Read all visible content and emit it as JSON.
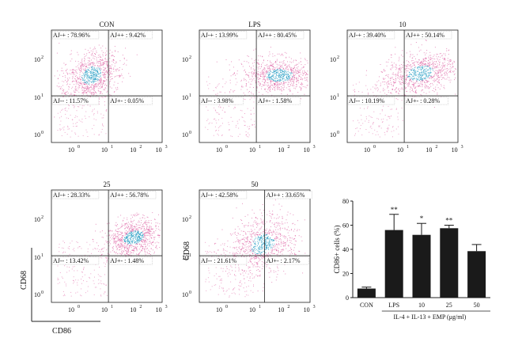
{
  "figure": {
    "panels": [
      {
        "title": "CON",
        "quadrants": {
          "ul": "AJ-+ : 78.96%",
          "ur": "AJ++ : 9.42%",
          "ll": "AJ-- : 11.57%",
          "lr": "AJ+- : 0.05%"
        }
      },
      {
        "title": "LPS",
        "quadrants": {
          "ul": "AJ-+ : 13.99%",
          "ur": "AJ++ : 80.45%",
          "ll": "AJ-- : 3.98%",
          "lr": "AJ+- : 1.58%"
        }
      },
      {
        "title": "10",
        "quadrants": {
          "ul": "AJ-+ : 39.40%",
          "ur": "AJ++ : 50.14%",
          "ll": "AJ-- : 10.19%",
          "lr": "AJ+- : 0.28%"
        }
      },
      {
        "title": "25",
        "quadrants": {
          "ul": "AJ-+ : 28.33%",
          "ur": "AJ++ : 56.78%",
          "ll": "AJ-- : 13.42%",
          "lr": "AJ+- : 1.48%"
        }
      },
      {
        "title": "50",
        "quadrants": {
          "ul": "AJ-+ : 42.58%",
          "ur": "AJ++ : 33.65%",
          "ll": "AJ-- : 21.61%",
          "lr": "AJ+- : 2.17%"
        }
      }
    ],
    "log_tick_labels": [
      "10",
      "10",
      "10",
      "10"
    ],
    "log_tick_exponents": [
      "0",
      "1",
      "2",
      "3"
    ],
    "x_axis_label": "CD86",
    "y_axis_label": "CD68",
    "colors": {
      "dots": "#d63a8c",
      "dense": "#2a9fc4",
      "axis": "#222222",
      "bar": "#1a1a1a"
    }
  },
  "chart_data": {
    "type": "bar",
    "categories": [
      "CON",
      "LPS",
      "10",
      "25",
      "50"
    ],
    "values": [
      7.5,
      56,
      52,
      57.5,
      38.5
    ],
    "errors": [
      1.2,
      13,
      9.5,
      2.5,
      5.5
    ],
    "significance": [
      "",
      "**",
      "*",
      "**",
      ""
    ],
    "ylabel": "CD86+ cells (%)",
    "xlabel": "IL-4 + IL-13 + EMP (μg/ml)",
    "ylim": [
      0,
      80
    ],
    "yticks": [
      "0",
      "20",
      "40",
      "60",
      "80"
    ]
  }
}
